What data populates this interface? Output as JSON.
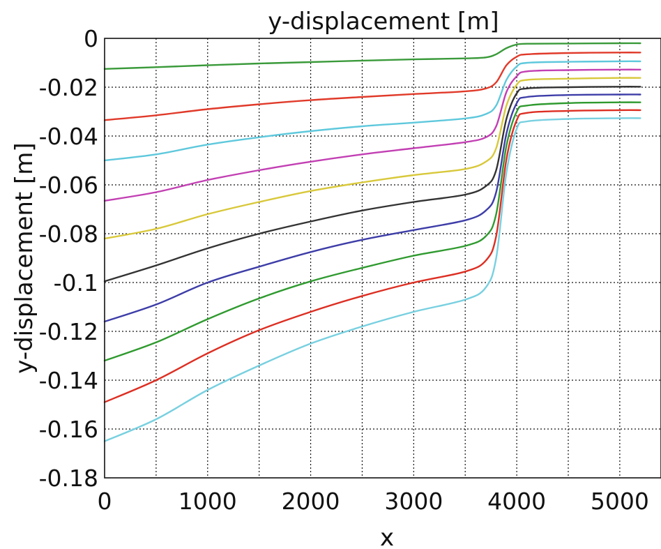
{
  "chart_data": {
    "type": "line",
    "title": "y-displacement [m]",
    "xlabel": "x",
    "ylabel": "y-displacement [m]",
    "xlim": [
      0,
      5400
    ],
    "ylim": [
      -0.18,
      0
    ],
    "grid": true,
    "x_ticks": [
      "0",
      "1000",
      "2000",
      "3000",
      "4000",
      "5000"
    ],
    "y_ticks": [
      "0",
      "-0.02",
      "-0.04",
      "-0.06",
      "-0.08",
      "-0.1",
      "-0.12",
      "-0.14",
      "-0.16",
      "-0.18"
    ],
    "x": [
      0,
      500,
      1000,
      1500,
      2000,
      2500,
      3000,
      3500,
      3700,
      3800,
      3900,
      4000,
      4100,
      4500,
      5000,
      5200
    ],
    "series": [
      {
        "color": "#3a9a3a",
        "values": [
          -0.0125,
          -0.0118,
          -0.011,
          -0.0103,
          -0.0097,
          -0.0091,
          -0.0086,
          -0.0082,
          -0.0078,
          -0.0065,
          -0.004,
          -0.0025,
          -0.0022,
          -0.0021,
          -0.002,
          -0.002
        ]
      },
      {
        "color": "#e03a2a",
        "values": [
          -0.0335,
          -0.0315,
          -0.029,
          -0.027,
          -0.0253,
          -0.024,
          -0.0228,
          -0.0217,
          -0.0205,
          -0.018,
          -0.011,
          -0.0075,
          -0.0065,
          -0.006,
          -0.0058,
          -0.0058
        ]
      },
      {
        "color": "#5ec8dc",
        "values": [
          -0.05,
          -0.0475,
          -0.0435,
          -0.0405,
          -0.038,
          -0.036,
          -0.0345,
          -0.0328,
          -0.031,
          -0.0275,
          -0.017,
          -0.0115,
          -0.01,
          -0.0096,
          -0.0094,
          -0.0094
        ]
      },
      {
        "color": "#c23fb3",
        "values": [
          -0.0665,
          -0.063,
          -0.058,
          -0.054,
          -0.0505,
          -0.0475,
          -0.045,
          -0.0425,
          -0.0405,
          -0.036,
          -0.022,
          -0.0155,
          -0.0135,
          -0.013,
          -0.0128,
          -0.0128
        ]
      },
      {
        "color": "#d8c83a",
        "values": [
          -0.082,
          -0.078,
          -0.072,
          -0.067,
          -0.0625,
          -0.059,
          -0.056,
          -0.0535,
          -0.0505,
          -0.045,
          -0.0275,
          -0.019,
          -0.017,
          -0.0165,
          -0.0162,
          -0.0162
        ]
      },
      {
        "color": "#333333",
        "values": [
          -0.0995,
          -0.093,
          -0.086,
          -0.08,
          -0.075,
          -0.0705,
          -0.067,
          -0.064,
          -0.0605,
          -0.054,
          -0.033,
          -0.0225,
          -0.0205,
          -0.02,
          -0.0198,
          -0.0198
        ]
      },
      {
        "color": "#3d3da8",
        "values": [
          -0.116,
          -0.109,
          -0.1,
          -0.0935,
          -0.0875,
          -0.0825,
          -0.0785,
          -0.0745,
          -0.0705,
          -0.063,
          -0.039,
          -0.0265,
          -0.024,
          -0.0232,
          -0.023,
          -0.023
        ]
      },
      {
        "color": "#2f9a2f",
        "values": [
          -0.132,
          -0.1245,
          -0.115,
          -0.1065,
          -0.0995,
          -0.094,
          -0.089,
          -0.085,
          -0.081,
          -0.072,
          -0.044,
          -0.03,
          -0.0275,
          -0.0265,
          -0.0262,
          -0.0262
        ]
      },
      {
        "color": "#dd2e22",
        "values": [
          -0.149,
          -0.14,
          -0.129,
          -0.1195,
          -0.112,
          -0.1055,
          -0.1,
          -0.0955,
          -0.091,
          -0.081,
          -0.0495,
          -0.0335,
          -0.0305,
          -0.0297,
          -0.0294,
          -0.0294
        ]
      },
      {
        "color": "#78d0e0",
        "values": [
          -0.165,
          -0.156,
          -0.144,
          -0.134,
          -0.125,
          -0.118,
          -0.112,
          -0.107,
          -0.102,
          -0.09,
          -0.055,
          -0.037,
          -0.034,
          -0.033,
          -0.0327,
          -0.0327
        ]
      }
    ]
  }
}
